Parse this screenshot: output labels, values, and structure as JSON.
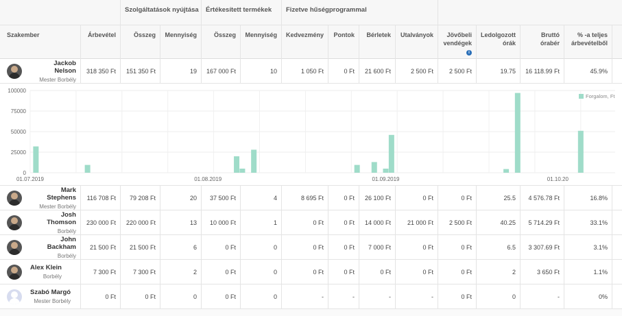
{
  "groups": {
    "services": "Szolgáltatások nyújtása",
    "products": "Értékesített termékek",
    "loyalty": "Fizetve hűségprogrammal"
  },
  "columns": {
    "specialist": "Szakember",
    "revenue": "Árbevétel",
    "svc_amount": "Összeg",
    "svc_qty": "Mennyiség",
    "prod_amount": "Összeg",
    "prod_qty": "Mennyiség",
    "discount": "Kedvezmény",
    "points": "Pontok",
    "passes": "Bérletek",
    "vouchers": "Utalványok",
    "future_guests": "Jövőbeli vendégek",
    "hours": "Ledolgozott órák",
    "gross_rate": "Bruttó órabér",
    "share": "% -a teljes árbevételből"
  },
  "rows": [
    {
      "name": "Jackob Nelson",
      "role": "Mester Borbély",
      "revenue": "318 350 Ft",
      "svc_amount": "151 350 Ft",
      "svc_qty": "19",
      "prod_amount": "167 000 Ft",
      "prod_qty": "10",
      "discount": "1 050 Ft",
      "points": "0 Ft",
      "passes": "21 600 Ft",
      "vouchers": "2 500 Ft",
      "future": "2 500 Ft",
      "hours": "19.75",
      "rate": "16 118.99 Ft",
      "share": "45.9%"
    },
    {
      "name": "Mark Stephens",
      "role": "Mester Borbély",
      "revenue": "116 708 Ft",
      "svc_amount": "79 208 Ft",
      "svc_qty": "20",
      "prod_amount": "37 500 Ft",
      "prod_qty": "4",
      "discount": "8 695 Ft",
      "points": "0 Ft",
      "passes": "26 100 Ft",
      "vouchers": "0 Ft",
      "future": "0 Ft",
      "hours": "25.5",
      "rate": "4 576.78 Ft",
      "share": "16.8%"
    },
    {
      "name": "Josh Thomson",
      "role": "Borbély",
      "revenue": "230 000 Ft",
      "svc_amount": "220 000 Ft",
      "svc_qty": "13",
      "prod_amount": "10 000 Ft",
      "prod_qty": "1",
      "discount": "0 Ft",
      "points": "0 Ft",
      "passes": "14 000 Ft",
      "vouchers": "21 000 Ft",
      "future": "2 500 Ft",
      "hours": "40.25",
      "rate": "5 714.29 Ft",
      "share": "33.1%"
    },
    {
      "name": "John Backham",
      "role": "Borbély",
      "revenue": "21 500 Ft",
      "svc_amount": "21 500 Ft",
      "svc_qty": "6",
      "prod_amount": "0 Ft",
      "prod_qty": "0",
      "discount": "0 Ft",
      "points": "0 Ft",
      "passes": "7 000 Ft",
      "vouchers": "0 Ft",
      "future": "0 Ft",
      "hours": "6.5",
      "rate": "3 307.69 Ft",
      "share": "3.1%"
    },
    {
      "name": "Alex Klein",
      "role": "Borbély",
      "revenue": "7 300 Ft",
      "svc_amount": "7 300 Ft",
      "svc_qty": "2",
      "prod_amount": "0 Ft",
      "prod_qty": "0",
      "discount": "0 Ft",
      "points": "0 Ft",
      "passes": "0 Ft",
      "vouchers": "0 Ft",
      "future": "0 Ft",
      "hours": "2",
      "rate": "3 650 Ft",
      "share": "1.1%"
    },
    {
      "name": "Szabó Margó",
      "role": "Mester Borbély",
      "revenue": "0 Ft",
      "svc_amount": "0 Ft",
      "svc_qty": "0",
      "prod_amount": "0 Ft",
      "prod_qty": "0",
      "discount": "-",
      "points": "-",
      "passes": "-",
      "vouchers": "-",
      "future": "0 Ft",
      "hours": "0",
      "rate": "-",
      "share": "0%"
    }
  ],
  "chart_data": {
    "type": "bar",
    "series": [
      {
        "name": "Forgalom, Ft",
        "color": "#9fdcc9"
      }
    ],
    "ylim": [
      0,
      100000
    ],
    "yticks": [
      "100000",
      "75000",
      "50000",
      "25000",
      "0"
    ],
    "xticks": [
      "01.07.2019",
      "01.08.2019",
      "01.09.2019",
      "01.10.20"
    ],
    "bars": [
      {
        "day": 1,
        "value": 32000
      },
      {
        "day": 10,
        "value": 9500
      },
      {
        "day": 36,
        "value": 20000
      },
      {
        "day": 37,
        "value": 5000
      },
      {
        "day": 39,
        "value": 28000
      },
      {
        "day": 57,
        "value": 9500
      },
      {
        "day": 60,
        "value": 13000
      },
      {
        "day": 62,
        "value": 5000
      },
      {
        "day": 63,
        "value": 46000
      },
      {
        "day": 83,
        "value": 4500
      },
      {
        "day": 85,
        "value": 97000
      },
      {
        "day": 96,
        "value": 51000
      }
    ],
    "legend": "Forgalom, Ft"
  }
}
